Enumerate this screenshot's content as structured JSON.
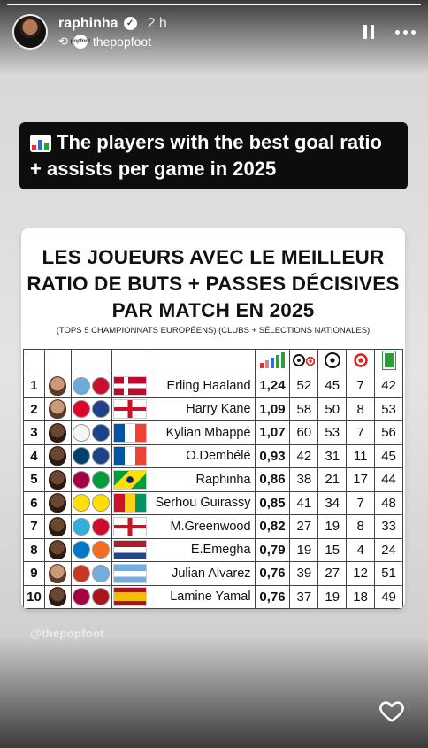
{
  "story": {
    "progress": 1.0,
    "username": "raphinha",
    "time": "2 h",
    "reposted_from": "thepopfoot",
    "mini_avatar_text": "popfoot",
    "watermark": "@thepopfoot"
  },
  "caption": {
    "icon": "bar-chart-emoji",
    "text": "The players with the best goal ratio + assists per game in 2025"
  },
  "card": {
    "title": "LES JOUEURS AVEC LE MEILLEUR RATIO DE BUTS + PASSES DÉCISIVES PAR MATCH EN 2025",
    "subtitle": "(TOPS 5 CHAMPIONNATS EUROPÉENS) (CLUBS + SÉLECTIONS NATIONALES)"
  },
  "table": {
    "header_icons": [
      "ratio-bars-icon",
      "goals-assists-icon",
      "goals-ball-icon",
      "assists-target-icon",
      "matches-pitch-icon"
    ],
    "rows": [
      {
        "rank": "1",
        "name": "Erling Haaland",
        "ratio": "1,24",
        "ga": "52",
        "goals": "45",
        "assists": "7",
        "matches": "42",
        "flag": "norway",
        "skin": "light"
      },
      {
        "rank": "2",
        "name": "Harry Kane",
        "ratio": "1,09",
        "ga": "58",
        "goals": "50",
        "assists": "8",
        "matches": "53",
        "flag": "england",
        "skin": "light"
      },
      {
        "rank": "3",
        "name": "Kylian Mbappé",
        "ratio": "1,07",
        "ga": "60",
        "goals": "53",
        "assists": "7",
        "matches": "56",
        "flag": "france",
        "skin": "dark"
      },
      {
        "rank": "4",
        "name": "O.Dembélé",
        "ratio": "0,93",
        "ga": "42",
        "goals": "31",
        "assists": "11",
        "matches": "45",
        "flag": "france",
        "skin": "dark"
      },
      {
        "rank": "5",
        "name": "Raphinha",
        "ratio": "0,86",
        "ga": "38",
        "goals": "21",
        "assists": "17",
        "matches": "44",
        "flag": "brazil",
        "skin": "dark"
      },
      {
        "rank": "6",
        "name": "Serhou Guirassy",
        "ratio": "0,85",
        "ga": "41",
        "goals": "34",
        "assists": "7",
        "matches": "48",
        "flag": "guinea",
        "skin": "dark"
      },
      {
        "rank": "7",
        "name": "M.Greenwood",
        "ratio": "0,82",
        "ga": "27",
        "goals": "19",
        "assists": "8",
        "matches": "33",
        "flag": "england",
        "skin": "dark"
      },
      {
        "rank": "8",
        "name": "E.Emegha",
        "ratio": "0,79",
        "ga": "19",
        "goals": "15",
        "assists": "4",
        "matches": "24",
        "flag": "netherlands",
        "skin": "dark"
      },
      {
        "rank": "9",
        "name": "Julian Alvarez",
        "ratio": "0,76",
        "ga": "39",
        "goals": "27",
        "assists": "12",
        "matches": "51",
        "flag": "argentina",
        "skin": "light"
      },
      {
        "rank": "10",
        "name": "Lamine Yamal",
        "ratio": "0,76",
        "ga": "37",
        "goals": "19",
        "assists": "18",
        "matches": "49",
        "flag": "spain",
        "skin": "dark"
      }
    ]
  },
  "colors": {
    "caption_bg": "#0d0d0d",
    "card_bg": "#ffffff",
    "ratio_green": "#2e9e3a",
    "target_red": "#dd2222"
  }
}
